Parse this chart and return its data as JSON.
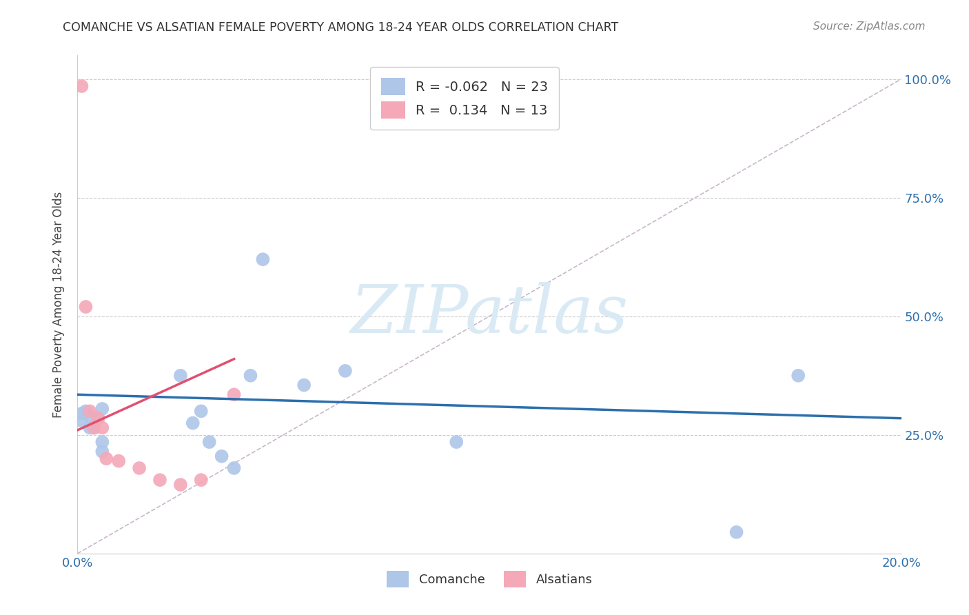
{
  "title": "COMANCHE VS ALSATIAN FEMALE POVERTY AMONG 18-24 YEAR OLDS CORRELATION CHART",
  "source": "Source: ZipAtlas.com",
  "ylabel": "Female Poverty Among 18-24 Year Olds",
  "xlim": [
    0.0,
    0.2
  ],
  "ylim": [
    0.0,
    1.05
  ],
  "xticks": [
    0.0,
    0.04,
    0.08,
    0.12,
    0.16,
    0.2
  ],
  "yticks": [
    0.0,
    0.25,
    0.5,
    0.75,
    1.0
  ],
  "xtick_labels": [
    "0.0%",
    "",
    "",
    "",
    "",
    "20.0%"
  ],
  "ytick_labels_right": [
    "",
    "25.0%",
    "50.0%",
    "75.0%",
    "100.0%"
  ],
  "comanche_R": "-0.062",
  "comanche_N": "23",
  "alsatian_R": "0.134",
  "alsatian_N": "13",
  "comanche_color": "#aec6e8",
  "alsatian_color": "#f4a8b8",
  "comanche_line_color": "#2c6fad",
  "alsatian_line_color": "#e05070",
  "diagonal_color": "#c8b8c8",
  "watermark_color": "#daeaf5",
  "comanche_x": [
    0.001,
    0.001,
    0.002,
    0.003,
    0.003,
    0.004,
    0.005,
    0.006,
    0.006,
    0.006,
    0.025,
    0.028,
    0.03,
    0.032,
    0.035,
    0.038,
    0.042,
    0.045,
    0.055,
    0.065,
    0.092,
    0.16,
    0.175
  ],
  "comanche_y": [
    0.28,
    0.295,
    0.3,
    0.29,
    0.265,
    0.265,
    0.285,
    0.305,
    0.215,
    0.235,
    0.375,
    0.275,
    0.3,
    0.235,
    0.205,
    0.18,
    0.375,
    0.62,
    0.355,
    0.385,
    0.235,
    0.045,
    0.375
  ],
  "alsatian_x": [
    0.001,
    0.002,
    0.003,
    0.004,
    0.005,
    0.006,
    0.007,
    0.01,
    0.015,
    0.02,
    0.025,
    0.03,
    0.038
  ],
  "alsatian_y": [
    0.985,
    0.52,
    0.3,
    0.265,
    0.285,
    0.265,
    0.2,
    0.195,
    0.18,
    0.155,
    0.145,
    0.155,
    0.335
  ],
  "comanche_line_x": [
    0.0,
    0.2
  ],
  "comanche_line_y": [
    0.335,
    0.285
  ],
  "alsatian_line_x": [
    0.0,
    0.038
  ],
  "alsatian_line_y": [
    0.26,
    0.41
  ],
  "background_color": "#ffffff",
  "grid_color": "#cccccc",
  "tick_color": "#2c6fad",
  "title_color": "#333333",
  "source_color": "#888888",
  "ylabel_color": "#444444"
}
